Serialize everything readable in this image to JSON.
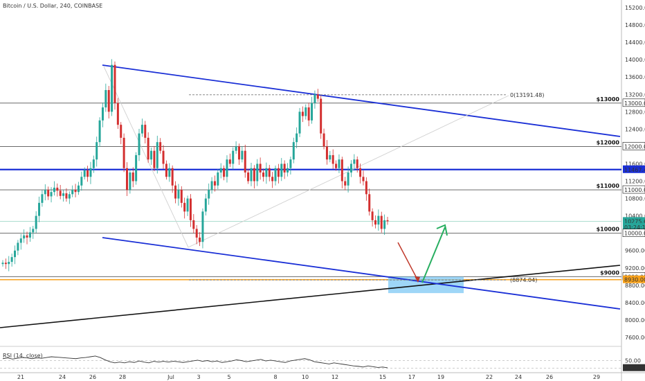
{
  "symbol": "Bitcoin / U.S. Dollar, 240, COINBASE",
  "colors": {
    "up": "#26a69a",
    "down": "#d32f2f",
    "channel": "#1a2fd6",
    "support": "#111111",
    "ma": "#d0d0d0",
    "zone": "#7ec8f4",
    "orange": "#f7a11a",
    "green_arrow": "#27ae60",
    "red_arrow": "#c0392b"
  },
  "price_axis": {
    "ticks": [
      "15200.00",
      "14800.00",
      "14400.00",
      "14000.00",
      "13600.00",
      "13200.00",
      "12800.00",
      "12400.00",
      "12000.00",
      "11600.00",
      "11200.00",
      "10800.00",
      "10400.00",
      "10000.00",
      "9600.00",
      "9200.00",
      "8800.00",
      "8400.00",
      "8000.00",
      "7600.00"
    ],
    "badges": [
      {
        "label": "11467.46",
        "price": 11467.46,
        "color": "#1a2fd6",
        "text": "#ffffff"
      },
      {
        "label": "11000.00",
        "price": 11000,
        "color": "#ffffff",
        "text": "#111111",
        "border": "#111111"
      },
      {
        "label": "10275.60",
        "price": 10275.6,
        "color": "#26a69a",
        "text": "#ffffff"
      },
      {
        "label": "03:24:11",
        "price": 10140,
        "color": "#26a69a",
        "text": "#ffffff"
      },
      {
        "label": "10000.00",
        "price": 10000,
        "color": "#ffffff",
        "text": "#111111",
        "border": "#111111"
      },
      {
        "label": "9000.00",
        "price": 9000,
        "color": "#ffffff",
        "text": "#111111",
        "border": "#111111"
      },
      {
        "label": "8930.00",
        "price": 8930,
        "color": "#f7a11a",
        "text": "#ffffff"
      },
      {
        "label": "12000.00",
        "price": 12000,
        "color": "#ffffff",
        "text": "#111111",
        "border": "#111111"
      },
      {
        "label": "13000.00",
        "price": 13000,
        "color": "#ffffff",
        "text": "#111111",
        "border": "#111111"
      }
    ]
  },
  "time_axis": {
    "labels": [
      "21",
      "24",
      "26",
      "28",
      "Jul",
      "3",
      "5",
      "8",
      "10",
      "12",
      "15",
      "17",
      "19",
      "22",
      "24",
      "26",
      "29"
    ]
  },
  "levels": [
    {
      "label": "$13000",
      "price": 13000
    },
    {
      "label": "$12000",
      "price": 12000
    },
    {
      "label": "$11000",
      "price": 11000
    },
    {
      "label": "$10000",
      "price": 10000
    },
    {
      "label": "$9000",
      "price": 9000
    }
  ],
  "annotations": {
    "top": "0(13191.48)",
    "bottom": "(8874.04)"
  },
  "rsi": {
    "label": "RSI (14, close)",
    "ticks": [
      "50.00",
      "31.43"
    ]
  },
  "chart_data": {
    "type": "candlestick",
    "title": "Bitcoin / U.S. Dollar, 240, COINBASE",
    "ylim": [
      7400,
      15300
    ],
    "timeframe": "240",
    "x_labels": [
      "21",
      "24",
      "26",
      "28",
      "Jul",
      "3",
      "5",
      "8",
      "10",
      "12",
      "15",
      "17",
      "19",
      "22",
      "24",
      "26",
      "29"
    ],
    "closes": [
      9320,
      9290,
      9340,
      9450,
      9600,
      9780,
      9880,
      9950,
      9900,
      10020,
      10100,
      10400,
      10700,
      10900,
      11000,
      10850,
      10950,
      11050,
      10980,
      10860,
      10920,
      10800,
      10900,
      11000,
      10950,
      11100,
      11300,
      11450,
      11300,
      11500,
      11700,
      12100,
      12600,
      12900,
      13300,
      12800,
      13880,
      13000,
      12500,
      12200,
      11500,
      11000,
      11400,
      11200,
      11800,
      12300,
      12500,
      12200,
      11700,
      11900,
      11500,
      12100,
      11900,
      11600,
      11300,
      11500,
      11100,
      10800,
      11000,
      10700,
      10500,
      10800,
      10300,
      10100,
      9900,
      9800,
      10500,
      10800,
      11000,
      11200,
      11100,
      11400,
      11500,
      11300,
      11700,
      11600,
      11900,
      12000,
      11700,
      11900,
      11400,
      11200,
      11500,
      11200,
      11600,
      11400,
      11300,
      11500,
      11300,
      11200,
      11500,
      11300,
      11600,
      11400,
      11500,
      11700,
      12100,
      12300,
      12800,
      12700,
      12900,
      12600,
      13000,
      13200,
      13100,
      12300,
      12000,
      11700,
      11800,
      11600,
      11500,
      11700,
      11200,
      11100,
      11400,
      11600,
      11700,
      11500,
      11300,
      11200,
      10900,
      10500,
      10300,
      10200,
      10400,
      10100,
      10300,
      10275.6
    ],
    "lines": [
      {
        "name": "channel-top",
        "x": [
          "Jun 26",
          "Jul 29"
        ],
        "y": [
          13880,
          12280
        ]
      },
      {
        "name": "channel-bottom",
        "x": [
          "Jun 26",
          "Jul 29"
        ],
        "y": [
          9980,
          8330
        ]
      },
      {
        "name": "support-line",
        "x": [
          "Jun 19",
          "Jul 29"
        ],
        "y": [
          7830,
          9270
        ]
      },
      {
        "name": "resistance-11467",
        "y": 11467.46
      }
    ],
    "horizontal_levels": [
      13000,
      12000,
      11000,
      10000,
      9000,
      8930
    ],
    "annotation_prices": [
      13191.48,
      8874.04
    ],
    "zone": {
      "price_top": 9000,
      "price_bottom": 8620
    },
    "rsi": {
      "last": 31.43,
      "ticks": [
        50,
        31.43
      ],
      "values": [
        55,
        57,
        54,
        56,
        58,
        57,
        55,
        57,
        56,
        58,
        60,
        59,
        58,
        57,
        56,
        55,
        57,
        58,
        60,
        62,
        58,
        52,
        47,
        44,
        46,
        44,
        47,
        45,
        49,
        46,
        44,
        48,
        46,
        48,
        46,
        48,
        47,
        45,
        47,
        49,
        51,
        48,
        50,
        47,
        49,
        45,
        47,
        49,
        52,
        50,
        47,
        49,
        51,
        53,
        49,
        51,
        49,
        47,
        45,
        49,
        51,
        53,
        55,
        52,
        47,
        45,
        43,
        41,
        44,
        42,
        40,
        38,
        36,
        35,
        33,
        36,
        34,
        32,
        33,
        31
      ]
    }
  }
}
